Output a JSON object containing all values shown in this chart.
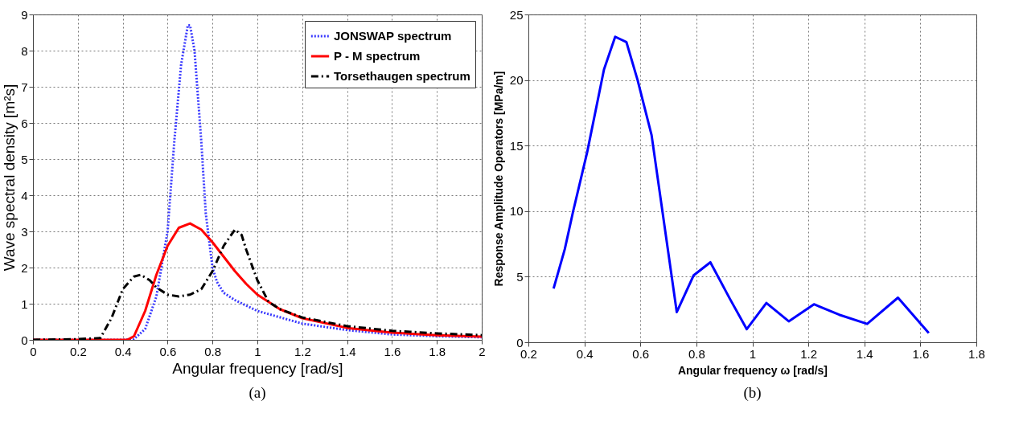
{
  "chart_data": [
    {
      "type": "line",
      "xlabel": "Angular frequency [rad/s]",
      "ylabel": "Wave spectral density [m²s]",
      "xlim": [
        0,
        2
      ],
      "ylim": [
        0,
        9
      ],
      "xticks": [
        0,
        0.2,
        0.4,
        0.6,
        0.8,
        1,
        1.2,
        1.4,
        1.6,
        1.8,
        2
      ],
      "yticks": [
        0,
        1,
        2,
        3,
        4,
        5,
        6,
        7,
        8,
        9
      ],
      "grid": true,
      "legend": "top right",
      "annotations": [
        "(a)"
      ],
      "series": [
        {
          "name": "JONSWAP spectrum",
          "color": "#3a3aff",
          "line_style": "dotted",
          "x": [
            0,
            0.4,
            0.45,
            0.5,
            0.55,
            0.6,
            0.63,
            0.66,
            0.69,
            0.7,
            0.72,
            0.75,
            0.77,
            0.8,
            0.82,
            0.85,
            0.9,
            1.0,
            1.2,
            1.4,
            1.6,
            1.8,
            2.0
          ],
          "values": [
            0,
            0,
            0.02,
            0.3,
            1.2,
            3.0,
            5.5,
            7.6,
            8.7,
            8.7,
            8.0,
            5.5,
            3.5,
            2.0,
            1.6,
            1.3,
            1.1,
            0.8,
            0.45,
            0.27,
            0.15,
            0.1,
            0.07
          ]
        },
        {
          "name": "P - M spectrum",
          "color": "#ff0000",
          "line_style": "solid",
          "x": [
            0,
            0.42,
            0.45,
            0.5,
            0.55,
            0.6,
            0.65,
            0.7,
            0.75,
            0.8,
            0.85,
            0.9,
            0.95,
            1.0,
            1.1,
            1.2,
            1.4,
            1.6,
            1.8,
            2.0
          ],
          "values": [
            0,
            0,
            0.1,
            0.8,
            1.8,
            2.6,
            3.1,
            3.22,
            3.05,
            2.7,
            2.3,
            1.9,
            1.55,
            1.25,
            0.85,
            0.6,
            0.33,
            0.2,
            0.13,
            0.09
          ]
        },
        {
          "name": "Torsethaugen spectrum",
          "color": "#000000",
          "line_style": "dashed",
          "x": [
            0,
            0.2,
            0.3,
            0.35,
            0.4,
            0.45,
            0.48,
            0.52,
            0.55,
            0.6,
            0.65,
            0.7,
            0.75,
            0.8,
            0.85,
            0.9,
            0.93,
            0.95,
            1.0,
            1.05,
            1.1,
            1.2,
            1.4,
            1.6,
            1.8,
            2.0
          ],
          "values": [
            0,
            0.02,
            0.05,
            0.6,
            1.4,
            1.75,
            1.8,
            1.65,
            1.45,
            1.25,
            1.2,
            1.25,
            1.4,
            1.9,
            2.6,
            3.05,
            2.9,
            2.5,
            1.65,
            1.05,
            0.85,
            0.62,
            0.38,
            0.25,
            0.18,
            0.13
          ]
        }
      ]
    },
    {
      "type": "line",
      "xlabel": "Angular frequency ω [rad/s]",
      "ylabel": "Response Amplitude Operators [MPa/m]",
      "xlim": [
        0.2,
        1.8
      ],
      "ylim": [
        0,
        25
      ],
      "xticks": [
        0.2,
        0.4,
        0.6,
        0.8,
        1,
        1.2,
        1.4,
        1.6,
        1.8
      ],
      "yticks": [
        0,
        5,
        10,
        15,
        20,
        25
      ],
      "grid": true,
      "annotations": [
        "(b)"
      ],
      "series": [
        {
          "color": "#0000ff",
          "line_style": "solid",
          "x": [
            0.29,
            0.33,
            0.36,
            0.41,
            0.47,
            0.51,
            0.55,
            0.59,
            0.64,
            0.73,
            0.79,
            0.85,
            0.92,
            0.98,
            1.05,
            1.13,
            1.22,
            1.31,
            1.41,
            1.52,
            1.63
          ],
          "values": [
            4.1,
            7.1,
            10,
            14.5,
            20.8,
            23.3,
            22.9,
            20,
            15.8,
            2.3,
            5.1,
            6.1,
            3.3,
            1.0,
            3.0,
            1.6,
            2.9,
            2.1,
            1.4,
            3.4,
            0.7
          ]
        }
      ]
    }
  ]
}
